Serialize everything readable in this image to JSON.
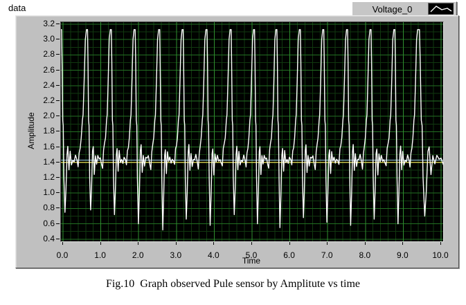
{
  "window": {
    "data_label": "data"
  },
  "legend": {
    "label": "Voltage_0",
    "position": "top-right"
  },
  "icons": {
    "legend_plot_style": "waveform-icon"
  },
  "caption": "Fig.10  Graph observed Pule sensor by Amplitute vs time",
  "colors": {
    "panel": "#c0c0c0",
    "plot_background": "#000200",
    "grid_major_vertical": "#2f8f2f",
    "grid_major_horizontal": "#237023",
    "grid_minor": "#11380f",
    "trace": "#ffffff",
    "threshold_upper": "#9fd3ea",
    "threshold_lower": "#c9c34a"
  },
  "chart_data": {
    "type": "line",
    "title": "",
    "xlabel": "Time",
    "ylabel": "Amplitude",
    "xlim": [
      0.0,
      10.0
    ],
    "ylim": [
      0.4,
      3.2
    ],
    "x_ticks": [
      "0.0",
      "1.0",
      "2.0",
      "3.0",
      "4.0",
      "5.0",
      "6.0",
      "7.0",
      "8.0",
      "9.0",
      "10.0"
    ],
    "y_ticks": [
      "3.2",
      "3.0",
      "2.8",
      "2.6",
      "2.4",
      "2.2",
      "2.0",
      "1.8",
      "1.6",
      "1.4",
      "1.2",
      "1.0",
      "0.8",
      "0.6",
      "0.4"
    ],
    "grid": {
      "on": true,
      "x_major_step": 1.0,
      "x_minor_step": 0.2,
      "y_major_step": 0.2,
      "y_minor_step": 0.1
    },
    "legend_entries": [
      "Voltage_0"
    ],
    "series": [
      {
        "name": "Voltage_0",
        "color": "#ffffff",
        "kind": "pulse_train",
        "peak_value": 3.13,
        "pulse_peaks": [
          0.62,
          1.25,
          1.88,
          2.53,
          3.15,
          3.78,
          4.42,
          5.04,
          5.63,
          6.25,
          6.87,
          7.5,
          8.12,
          8.75,
          9.38
        ],
        "draw_cycles": {
          "pre_peak": -0.07,
          "post_peak": 10.45
        },
        "cycle_minima": [
          0.75,
          0.78,
          0.72,
          0.6,
          0.52,
          0.66,
          0.58,
          0.72,
          0.6,
          0.55,
          0.68,
          0.62,
          0.58,
          0.66,
          0.6,
          0.7
        ],
        "pulse_template": [
          [
            0.0,
            3.13
          ],
          [
            0.045,
            3.13
          ],
          [
            0.065,
            2.7
          ],
          [
            0.09,
            1.95
          ],
          [
            0.11,
            1.88
          ],
          [
            0.135,
            1.2
          ],
          [
            0.175,
            0.62
          ],
          [
            0.215,
            1.0
          ],
          [
            0.255,
            1.52
          ],
          [
            0.285,
            1.6
          ],
          [
            0.33,
            1.27
          ],
          [
            0.375,
            1.52
          ],
          [
            0.425,
            1.38
          ],
          [
            0.475,
            1.46
          ],
          [
            0.53,
            1.42
          ],
          [
            0.58,
            1.47
          ],
          [
            0.64,
            1.4
          ],
          [
            0.68,
            1.34
          ],
          [
            0.72,
            1.55
          ],
          [
            0.76,
            1.62
          ],
          [
            0.8,
            1.72
          ],
          [
            0.845,
            1.95
          ],
          [
            0.87,
            2.02
          ],
          [
            0.91,
            2.45
          ],
          [
            0.955,
            3.0
          ],
          [
            1.0,
            3.13
          ]
        ]
      },
      {
        "name": "threshold-upper",
        "kind": "hline",
        "y": 1.43,
        "color": "#9fd3ea"
      },
      {
        "name": "threshold-lower",
        "kind": "hline",
        "y": 1.4,
        "color": "#c9c34a"
      }
    ]
  }
}
